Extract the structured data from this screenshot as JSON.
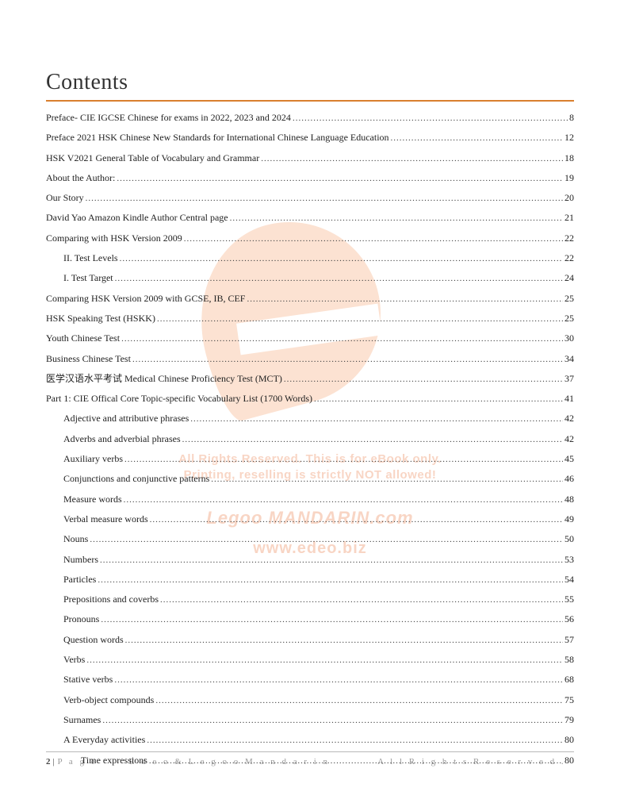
{
  "title": "Contents",
  "rule_color": "#d97f2e",
  "toc": [
    {
      "label": "Preface- CIE IGCSE Chinese for exams in 2022, 2023 and 2024",
      "page": "8",
      "indent": 0
    },
    {
      "label": "Preface 2021 HSK Chinese New Standards for International Chinese Language Education",
      "page": "12",
      "indent": 0
    },
    {
      "label": "HSK V2021 General Table of Vocabulary and Grammar",
      "page": "18",
      "indent": 0
    },
    {
      "label": "About the Author:",
      "page": "19",
      "indent": 0
    },
    {
      "label": "Our Story",
      "page": "20",
      "indent": 0
    },
    {
      "label": "David Yao Amazon Kindle Author Central page",
      "page": "21",
      "indent": 0
    },
    {
      "label": "Comparing with HSK Version 2009",
      "page": "22",
      "indent": 0
    },
    {
      "label": "II. Test Levels",
      "page": "22",
      "indent": 1
    },
    {
      "label": "I. Test Target",
      "page": "24",
      "indent": 1
    },
    {
      "label": "Comparing HSK Version 2009 with GCSE, IB, CEF",
      "page": "25",
      "indent": 0
    },
    {
      "label": "HSK Speaking Test (HSKK)",
      "page": "25",
      "indent": 0
    },
    {
      "label": "Youth Chinese Test",
      "page": "30",
      "indent": 0
    },
    {
      "label": "Business Chinese Test",
      "page": "34",
      "indent": 0
    },
    {
      "label": "医学汉语水平考试 Medical Chinese Proficiency Test (MCT)",
      "page": "37",
      "indent": 0
    },
    {
      "label": "Part 1: CIE Offical Core Topic-specific Vocabulary List (1700 Words)",
      "page": "41",
      "indent": 0
    },
    {
      "label": "Adjective and attributive phrases",
      "page": "42",
      "indent": 1
    },
    {
      "label": "Adverbs and adverbial phrases",
      "page": "42",
      "indent": 1
    },
    {
      "label": "Auxiliary verbs",
      "page": "45",
      "indent": 1
    },
    {
      "label": "Conjunctions and conjunctive patterns",
      "page": "46",
      "indent": 1
    },
    {
      "label": "Measure words",
      "page": "48",
      "indent": 1
    },
    {
      "label": "Verbal measure words",
      "page": "49",
      "indent": 1
    },
    {
      "label": "Nouns",
      "page": "50",
      "indent": 1
    },
    {
      "label": "Numbers",
      "page": "53",
      "indent": 1
    },
    {
      "label": "Particles",
      "page": "54",
      "indent": 1
    },
    {
      "label": "Prepositions and coverbs",
      "page": "55",
      "indent": 1
    },
    {
      "label": "Pronouns",
      "page": "56",
      "indent": 1
    },
    {
      "label": "Question words",
      "page": "57",
      "indent": 1
    },
    {
      "label": "Verbs",
      "page": "58",
      "indent": 1
    },
    {
      "label": "Stative verbs",
      "page": "68",
      "indent": 1
    },
    {
      "label": "Verb-object compounds",
      "page": "75",
      "indent": 1
    },
    {
      "label": "Surnames",
      "page": "79",
      "indent": 1
    },
    {
      "label": "A Everyday activities",
      "page": "80",
      "indent": 1
    },
    {
      "label": "Time expressions",
      "page": "80",
      "indent": 2
    }
  ],
  "watermark": {
    "line1": "All Rights Reserved. This is for eBook only.",
    "line2": "Printing, reselling is strictly NOT allowed!",
    "line3": "Legoo MANDARIN.com",
    "line4": "www.edeo.biz",
    "color": "#e86a2f"
  },
  "footer": {
    "page_number": "2",
    "page_word": "P a g e",
    "center": "E d e o   &   L e g o o M a n d a r i n",
    "right": "A l l   R i g h t s   R e s e r v e d ."
  }
}
